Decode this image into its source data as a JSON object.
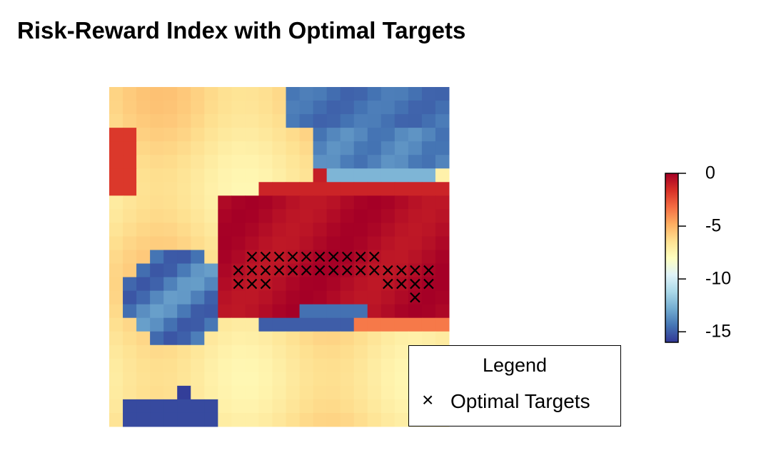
{
  "title": "Risk-Reward Index with Optimal Targets",
  "colors": {
    "palette": [
      "#313695",
      "#4575b4",
      "#74add1",
      "#abd9e9",
      "#e0f3f8",
      "#ffffbf",
      "#fee090",
      "#fdae61",
      "#f46d43",
      "#d73027",
      "#a50026"
    ],
    "marker": "#000000"
  },
  "legend": {
    "title": "Legend",
    "symbol": "×",
    "label": "Optimal Targets"
  },
  "chart_data": {
    "type": "heatmap",
    "title": "Risk-Reward Index with Optimal Targets",
    "grid_size": [
      25,
      25
    ],
    "value_range": [
      -16,
      0
    ],
    "colorbar": {
      "ticks": [
        0,
        -5,
        -10,
        -15
      ],
      "tick_labels": [
        "0",
        "-5",
        "-10",
        "-15"
      ]
    },
    "description_of_regions": [
      {
        "region": "upper-right",
        "approx_value": -14.5
      },
      {
        "region": "central band (high)",
        "approx_value": -0.5
      },
      {
        "region": "left-middle pocket",
        "approx_value": -14
      },
      {
        "region": "bottom-left pocket",
        "approx_value": -15.5
      },
      {
        "region": "background",
        "approx_value": -6.5
      }
    ],
    "optimal_targets": [
      [
        10,
        12
      ],
      [
        11,
        12
      ],
      [
        12,
        12
      ],
      [
        13,
        12
      ],
      [
        14,
        12
      ],
      [
        15,
        12
      ],
      [
        16,
        12
      ],
      [
        17,
        12
      ],
      [
        18,
        12
      ],
      [
        19,
        12
      ],
      [
        9,
        13
      ],
      [
        10,
        13
      ],
      [
        11,
        13
      ],
      [
        12,
        13
      ],
      [
        13,
        13
      ],
      [
        14,
        13
      ],
      [
        15,
        13
      ],
      [
        16,
        13
      ],
      [
        17,
        13
      ],
      [
        18,
        13
      ],
      [
        19,
        13
      ],
      [
        20,
        13
      ],
      [
        21,
        13
      ],
      [
        22,
        13
      ],
      [
        23,
        13
      ],
      [
        9,
        14
      ],
      [
        10,
        14
      ],
      [
        11,
        14
      ],
      [
        20,
        14
      ],
      [
        21,
        14
      ],
      [
        22,
        14
      ],
      [
        23,
        14
      ],
      [
        22,
        15
      ]
    ]
  }
}
